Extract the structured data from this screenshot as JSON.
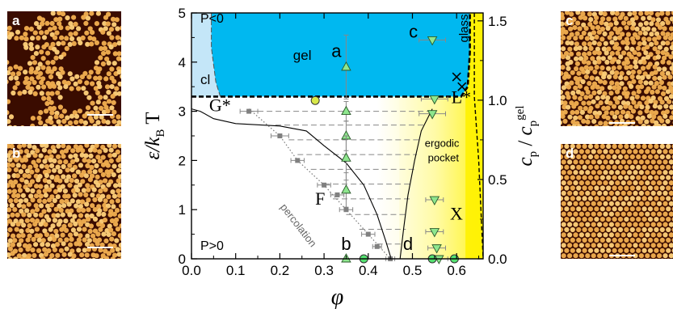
{
  "panels": [
    {
      "letter": "a",
      "kind": "gel",
      "scale_bar": true
    },
    {
      "letter": "b",
      "kind": "fluid",
      "scale_bar": true
    },
    {
      "letter": "c",
      "kind": "glass",
      "scale_bar": true
    },
    {
      "letter": "d",
      "kind": "crystal",
      "scale_bar": true
    }
  ],
  "colors": {
    "gel_region": "#00b8f0",
    "cl_region": "#c4e6f8",
    "glass_region": "#fff200",
    "marker_light_green": "#8ee68e",
    "marker_bright_green": "#54e070",
    "marker_circle_fill": "#d8e84a",
    "marker_grey": "#808080",
    "tieline_grey": "#888888",
    "image_dark": "#3a0c00",
    "image_particle": "#f2b050"
  },
  "chart_data": {
    "type": "scatter",
    "xlabel": "φ",
    "ylabel_left": "ε/k_B T",
    "ylabel_right": "c_p / c_p^gel",
    "xlim": [
      0.0,
      0.66
    ],
    "ylim": [
      0,
      5
    ],
    "ylim_right": [
      0,
      1.55
    ],
    "xticks": [
      "0.0",
      "0.1",
      "0.2",
      "0.3",
      "0.4",
      "0.5",
      "0.6"
    ],
    "yticks": [
      "0",
      "1",
      "2",
      "3",
      "4",
      "5"
    ],
    "yticks_right": [
      "0.0",
      "0.5",
      "1.0",
      "1.5"
    ],
    "region_labels": [
      {
        "text": "P<0",
        "x": 0.02,
        "y": 4.8
      },
      {
        "text": "gel",
        "x": 0.23,
        "y": 4.05
      },
      {
        "text": "cl",
        "x": 0.02,
        "y": 3.55
      },
      {
        "text": "glass",
        "x": 0.625,
        "y": 4.4
      },
      {
        "text": "G*",
        "x": 0.04,
        "y": 3.0
      },
      {
        "text": "L*",
        "x": 0.588,
        "y": 3.17
      },
      {
        "text": "F",
        "x": 0.28,
        "y": 1.1
      },
      {
        "text": "X",
        "x": 0.585,
        "y": 0.8
      },
      {
        "text": "P>0",
        "x": 0.02,
        "y": 0.18
      },
      {
        "text": "percolation",
        "x": 0.2,
        "y": 1.05
      },
      {
        "text": "ergodic",
        "x": 0.528,
        "y": 2.28
      },
      {
        "text": "pocket",
        "x": 0.535,
        "y": 1.98
      }
    ],
    "point_labels": [
      {
        "text": "a",
        "x": 0.328,
        "y": 4.1
      },
      {
        "text": "b",
        "x": 0.35,
        "y": 0.18
      },
      {
        "text": "c",
        "x": 0.502,
        "y": 4.5
      },
      {
        "text": "d",
        "x": 0.49,
        "y": 0.18
      }
    ],
    "series": [
      {
        "marker": "triangle-up",
        "x": [
          0.35,
          0.35,
          0.35,
          0.35,
          0.35,
          0.35
        ],
        "y": [
          3.9,
          3.0,
          2.5,
          2.05,
          1.4,
          0.0
        ],
        "err_y": [
          0.65,
          0.2,
          0.3,
          0.45,
          0.35,
          0.0
        ]
      },
      {
        "marker": "triangle-down",
        "x": [
          0.545,
          0.55,
          0.545,
          0.55,
          0.55,
          0.555,
          0.56
        ],
        "y": [
          4.45,
          3.25,
          2.95,
          1.2,
          0.55,
          0.22,
          0.0
        ],
        "err_x": [
          0.03,
          0.03,
          0.03,
          0.02,
          0.02,
          0.02,
          0.02
        ]
      },
      {
        "marker": "square",
        "x": [
          0.13,
          0.2,
          0.24,
          0.3,
          0.33,
          0.35,
          0.4,
          0.42,
          0.45
        ],
        "y": [
          3.0,
          2.5,
          2.0,
          1.5,
          1.3,
          1.0,
          0.5,
          0.25,
          0.0
        ],
        "err_x": [
          0.02,
          0.02,
          0.015,
          0.015,
          0.015,
          0.015,
          0.015,
          0.01,
          0.01
        ]
      },
      {
        "marker": "circle",
        "x": [
          0.28,
          0.39,
          0.545,
          0.595
        ],
        "y": [
          3.22,
          0.0,
          0.0,
          0.0
        ]
      },
      {
        "marker": "cross",
        "x": [
          0.6,
          0.612
        ],
        "y": [
          3.7,
          3.5
        ]
      }
    ],
    "tielines": [
      {
        "y": 3.0,
        "x1": 0.13,
        "x2": 0.55
      },
      {
        "y": 2.72,
        "x1": 0.19,
        "x2": 0.53
      },
      {
        "y": 2.42,
        "x1": 0.22,
        "x2": 0.52
      },
      {
        "y": 2.12,
        "x1": 0.24,
        "x2": 0.51
      },
      {
        "y": 1.82,
        "x1": 0.27,
        "x2": 0.505
      },
      {
        "y": 1.52,
        "x1": 0.3,
        "x2": 0.5
      },
      {
        "y": 1.22,
        "x1": 0.32,
        "x2": 0.495
      },
      {
        "y": 0.9,
        "x1": 0.35,
        "x2": 0.49
      },
      {
        "y": 0.6,
        "x1": 0.38,
        "x2": 0.485
      },
      {
        "y": 0.3,
        "x1": 0.42,
        "x2": 0.48
      }
    ],
    "curves": {
      "binodal_left": [
        [
          0.0,
          3.05
        ],
        [
          0.02,
          3.0
        ],
        [
          0.05,
          2.85
        ],
        [
          0.1,
          2.75
        ],
        [
          0.2,
          2.7
        ],
        [
          0.26,
          2.6
        ],
        [
          0.3,
          2.3
        ],
        [
          0.35,
          1.95
        ],
        [
          0.39,
          1.5
        ],
        [
          0.42,
          0.9
        ],
        [
          0.44,
          0.35
        ],
        [
          0.452,
          0.0
        ]
      ],
      "binodal_right": [
        [
          0.472,
          0.0
        ],
        [
          0.48,
          0.6
        ],
        [
          0.49,
          1.3
        ],
        [
          0.505,
          2.0
        ],
        [
          0.52,
          2.6
        ],
        [
          0.545,
          3.05
        ]
      ],
      "percolation": [
        [
          0.13,
          3.05
        ],
        [
          0.2,
          2.5
        ],
        [
          0.24,
          2.0
        ],
        [
          0.3,
          1.5
        ],
        [
          0.35,
          1.0
        ],
        [
          0.4,
          0.5
        ],
        [
          0.45,
          0.0
        ]
      ],
      "gel_boundary": [
        [
          0.0,
          3.3
        ],
        [
          0.61,
          3.3
        ],
        [
          0.625,
          3.5
        ],
        [
          0.63,
          4.2
        ],
        [
          0.63,
          5.0
        ]
      ],
      "cl_boundary": [
        [
          0.045,
          5.0
        ],
        [
          0.045,
          4.3
        ],
        [
          0.055,
          3.6
        ],
        [
          0.065,
          3.3
        ]
      ],
      "glass_boundary": [
        [
          0.64,
          5.0
        ],
        [
          0.64,
          3.3
        ],
        [
          0.65,
          2.0
        ],
        [
          0.66,
          0.0
        ]
      ]
    }
  }
}
